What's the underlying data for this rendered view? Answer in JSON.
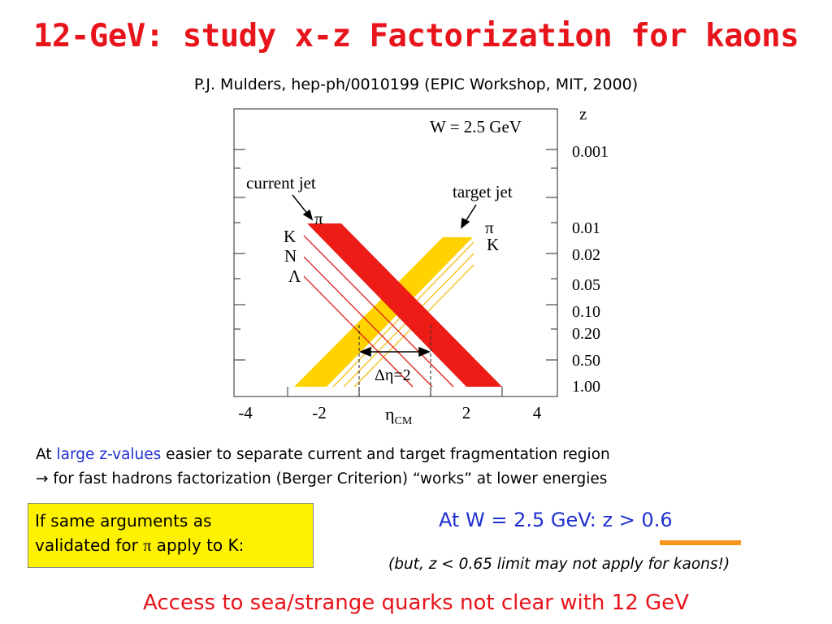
{
  "header": {
    "title": "12-GeV: study x-z Factorization for kaons",
    "subtitle": "P.J. Mulders, hep-ph/0010199 (EPIC Workshop, MIT, 2000)"
  },
  "diagram": {
    "w_label": "W =  2.5 GeV",
    "current_jet_label": "current jet",
    "target_jet_label": "target jet",
    "current_particles": [
      "π",
      "K",
      "N",
      "Λ"
    ],
    "target_particles": [
      "π",
      "K"
    ],
    "z_axis_title": "z",
    "z_ticks": [
      "0.001",
      "0.01",
      "0.02",
      "0.05",
      "0.10",
      "0.20",
      "0.50",
      "1.00"
    ],
    "x_ticks": [
      "-4",
      "-2",
      "2",
      "4"
    ],
    "x_axis_title": "η",
    "x_axis_sub": "CM",
    "delta_label": "Δη=2",
    "colors": {
      "current_band": "#ed1c16",
      "target_band": "#ffd200",
      "thin_current": "#e21e1e",
      "thin_target": "#f1c21b"
    }
  },
  "body": {
    "line1_pre": "At ",
    "line1_blue": "large z-values",
    "line1_post": " easier to separate current and target fragmentation region",
    "line2_arrow": "→",
    "line2": " for fast hadrons factorization (Berger Criterion) “works” at lower energies"
  },
  "box": {
    "line1": "If same arguments as",
    "line2_pre": "validated for ",
    "line2_symbol": "π",
    "line2_post": " apply to K:"
  },
  "result": {
    "pre": "At W = 2.5 GeV: ",
    "value": "z > 0.6"
  },
  "note": "(but, z < 0.65 limit may not apply for kaons!)",
  "bottom": "Access to sea/strange quarks not clear with 12 GeV"
}
